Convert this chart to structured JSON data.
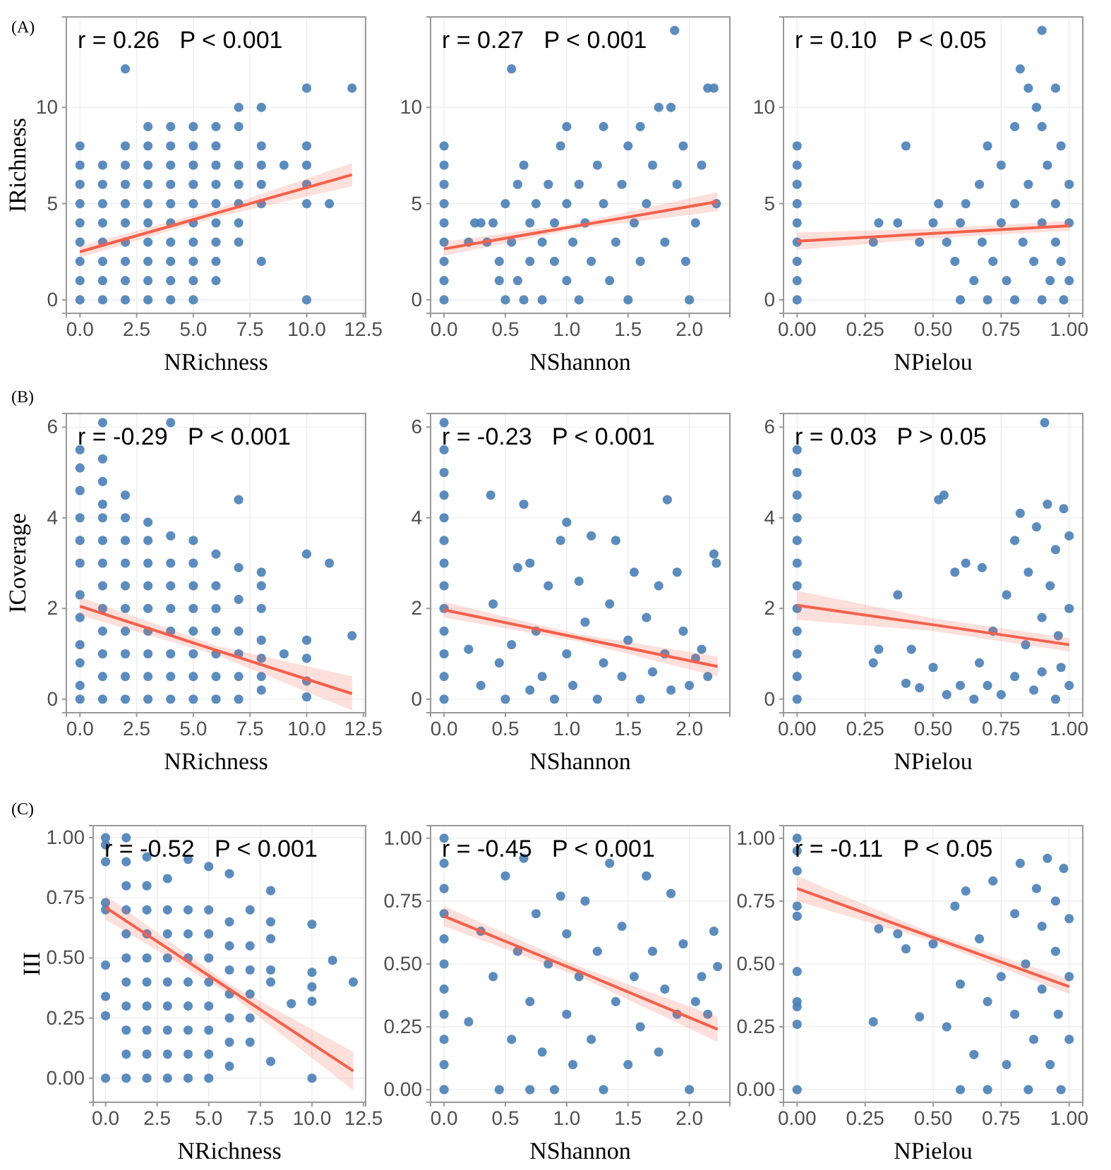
{
  "chart_data": [
    {
      "type": "scatter",
      "title": "(A)",
      "xlabel": "NRichness",
      "ylabel": "IRichness",
      "annotations": [
        "r = 0.26   P < 0.001"
      ],
      "xlim": [
        -0.6,
        12.6
      ],
      "xticks": [
        {
          "value": 0,
          "label": "0.0"
        },
        {
          "value": 2.5,
          "label": "2.5"
        },
        {
          "value": 5,
          "label": "5.0"
        },
        {
          "value": 7.5,
          "label": "7.5"
        },
        {
          "value": 10,
          "label": "10.0"
        },
        {
          "value": 12.5,
          "label": "12.5"
        }
      ],
      "ylim": [
        -0.7,
        14.7
      ],
      "yticks": [
        0,
        5,
        10
      ],
      "grid": true,
      "series": [
        {
          "type": "scatter",
          "color": "#4a80b6",
          "x": [
            0,
            0,
            0,
            0,
            0,
            0,
            0,
            0,
            0,
            1,
            1,
            1,
            1,
            1,
            1,
            1,
            1,
            2,
            2,
            2,
            2,
            2,
            2,
            2,
            2,
            2,
            2,
            3,
            3,
            3,
            3,
            3,
            3,
            3,
            3,
            3,
            3,
            4,
            4,
            4,
            4,
            4,
            4,
            4,
            4,
            4,
            4,
            5,
            5,
            5,
            5,
            5,
            5,
            5,
            5,
            5,
            5,
            6,
            6,
            6,
            6,
            6,
            6,
            6,
            6,
            6,
            7,
            7,
            7,
            7,
            7,
            7,
            7,
            8,
            8,
            8,
            8,
            8,
            8,
            9,
            10,
            10,
            10,
            10,
            10,
            10,
            11,
            12
          ],
          "values": [
            0,
            1,
            2,
            3,
            4,
            5,
            6,
            7,
            8,
            0,
            1,
            2,
            3,
            4,
            5,
            6,
            7,
            0,
            1,
            2,
            3,
            4,
            5,
            6,
            7,
            8,
            12,
            0,
            1,
            2,
            3,
            4,
            5,
            6,
            7,
            8,
            9,
            0,
            1,
            2,
            3,
            4,
            5,
            6,
            7,
            8,
            9,
            0,
            1,
            2,
            3,
            4,
            5,
            6,
            7,
            8,
            9,
            1,
            2,
            3,
            4,
            5,
            6,
            7,
            8,
            9,
            3,
            4,
            5,
            6,
            7,
            9,
            10,
            2,
            5,
            6,
            7,
            8,
            10,
            7,
            0,
            5,
            6,
            7,
            8,
            11,
            5,
            11
          ]
        },
        {
          "type": "line",
          "color": "#f4604a",
          "x": [
            0,
            6,
            12
          ],
          "values": [
            2.5,
            4.5,
            6.5
          ],
          "lower": [
            2.2,
            4.3,
            5.9
          ],
          "upper": [
            2.8,
            4.7,
            7.1
          ]
        }
      ]
    },
    {
      "type": "scatter",
      "xlabel": "NShannon",
      "annotations": [
        "r = 0.27   P < 0.001"
      ],
      "xlim": [
        -0.11,
        2.33
      ],
      "xticks": [
        {
          "value": 0,
          "label": "0.0"
        },
        {
          "value": 0.5,
          "label": "0.5"
        },
        {
          "value": 1,
          "label": "1.0"
        },
        {
          "value": 1.5,
          "label": "1.5"
        },
        {
          "value": 2,
          "label": "2.0"
        }
      ],
      "ylim": [
        -0.7,
        14.7
      ],
      "yticks": [
        0,
        5,
        10
      ],
      "grid": true,
      "series": [
        {
          "type": "scatter",
          "color": "#4a80b6",
          "x": [
            0,
            0,
            0,
            0,
            0,
            0,
            0,
            0,
            0,
            0.2,
            0.25,
            0.3,
            0.35,
            0.4,
            0.45,
            0.45,
            0.5,
            0.5,
            0.55,
            0.55,
            0.6,
            0.6,
            0.65,
            0.65,
            0.7,
            0.7,
            0.75,
            0.8,
            0.8,
            0.85,
            0.9,
            0.9,
            0.95,
            1.0,
            1.0,
            1.0,
            1.05,
            1.1,
            1.1,
            1.15,
            1.2,
            1.25,
            1.3,
            1.3,
            1.35,
            1.4,
            1.45,
            1.5,
            1.5,
            1.55,
            1.6,
            1.6,
            1.65,
            1.7,
            1.75,
            1.8,
            1.85,
            1.88,
            1.9,
            1.95,
            1.97,
            2.0,
            2.05,
            2.1,
            2.15,
            2.2,
            2.22
          ],
          "values": [
            0,
            1,
            2,
            3,
            4,
            5,
            6,
            7,
            8,
            3,
            4,
            4,
            3,
            4,
            2,
            1,
            0,
            5,
            12,
            3,
            6,
            1,
            7,
            0,
            4,
            2,
            5,
            3,
            0,
            6,
            2,
            4,
            8,
            9,
            5,
            1,
            3,
            6,
            0,
            4,
            2,
            7,
            9,
            5,
            1,
            3,
            6,
            8,
            0,
            4,
            9,
            2,
            5,
            7,
            10,
            3,
            10,
            14,
            6,
            8,
            2,
            0,
            4,
            7,
            11,
            11,
            5
          ]
        },
        {
          "type": "line",
          "color": "#f4604a",
          "x": [
            0,
            1.1,
            2.23
          ],
          "values": [
            2.65,
            3.86,
            5.1
          ],
          "lower": [
            2.3,
            3.7,
            4.6
          ],
          "upper": [
            3.0,
            4.0,
            5.6
          ]
        }
      ]
    },
    {
      "type": "scatter",
      "xlabel": "NPielou",
      "annotations": [
        "r = 0.10   P < 0.05"
      ],
      "xlim": [
        -0.05,
        1.05
      ],
      "xticks": [
        {
          "value": 0,
          "label": "0.00"
        },
        {
          "value": 0.25,
          "label": "0.25"
        },
        {
          "value": 0.5,
          "label": "0.50"
        },
        {
          "value": 0.75,
          "label": "0.75"
        },
        {
          "value": 1,
          "label": "1.00"
        }
      ],
      "ylim": [
        -0.7,
        14.7
      ],
      "yticks": [
        0,
        5,
        10
      ],
      "grid": true,
      "series": [
        {
          "type": "scatter",
          "color": "#4a80b6",
          "x": [
            0,
            0,
            0,
            0,
            0,
            0,
            0,
            0,
            0,
            0.28,
            0.3,
            0.37,
            0.4,
            0.45,
            0.5,
            0.52,
            0.55,
            0.58,
            0.6,
            0.6,
            0.62,
            0.65,
            0.67,
            0.68,
            0.7,
            0.7,
            0.72,
            0.75,
            0.75,
            0.77,
            0.8,
            0.8,
            0.8,
            0.82,
            0.83,
            0.85,
            0.85,
            0.87,
            0.88,
            0.9,
            0.9,
            0.9,
            0.9,
            0.92,
            0.93,
            0.95,
            0.95,
            0.95,
            0.97,
            0.97,
            0.98,
            1.0,
            1.0,
            1.0
          ],
          "values": [
            0,
            1,
            2,
            3,
            4,
            5,
            6,
            7,
            8,
            3,
            4,
            4,
            8,
            3,
            4,
            5,
            3,
            2,
            0,
            4,
            5,
            1,
            6,
            3,
            8,
            0,
            2,
            7,
            4,
            1,
            9,
            5,
            0,
            12,
            3,
            11,
            6,
            2,
            10,
            14,
            9,
            4,
            0,
            7,
            1,
            11,
            5,
            3,
            8,
            2,
            0,
            6,
            4,
            1
          ]
        },
        {
          "type": "line",
          "color": "#f4604a",
          "x": [
            0,
            0.5,
            1
          ],
          "values": [
            3.05,
            3.45,
            3.85
          ],
          "lower": [
            2.6,
            3.2,
            3.6
          ],
          "upper": [
            3.5,
            3.7,
            4.1
          ]
        }
      ]
    },
    {
      "type": "scatter",
      "title": "(B)",
      "xlabel": "NRichness",
      "ylabel": "ICoverage",
      "annotations": [
        "r = -0.29   P < 0.001"
      ],
      "xlim": [
        -0.6,
        12.6
      ],
      "xticks": [
        {
          "value": 0,
          "label": "0.0"
        },
        {
          "value": 2.5,
          "label": "2.5"
        },
        {
          "value": 5,
          "label": "5.0"
        },
        {
          "value": 7.5,
          "label": "7.5"
        },
        {
          "value": 10,
          "label": "10.0"
        },
        {
          "value": 12.5,
          "label": "12.5"
        }
      ],
      "ylim": [
        -0.3,
        6.3
      ],
      "yticks": [
        0,
        2,
        4,
        6
      ],
      "grid": true,
      "series": [
        {
          "type": "scatter",
          "color": "#4a80b6",
          "x": [
            0,
            0,
            0,
            0,
            0,
            0,
            0,
            0,
            0,
            0,
            0,
            0,
            1,
            1,
            1,
            1,
            1,
            1,
            1,
            1,
            1,
            1,
            1,
            1,
            1,
            2,
            2,
            2,
            2,
            2,
            2,
            2,
            2,
            2,
            2,
            3,
            3,
            3,
            3,
            3,
            3,
            3,
            3,
            3,
            4,
            4,
            4,
            4,
            4,
            4,
            4,
            4,
            4,
            5,
            5,
            5,
            5,
            5,
            5,
            5,
            5,
            6,
            6,
            6,
            6,
            6,
            6,
            6,
            7,
            7,
            7,
            7,
            7,
            7,
            7,
            8,
            8,
            8,
            8,
            8,
            8,
            8,
            9,
            10,
            10,
            10,
            10,
            10,
            11,
            12
          ],
          "values": [
            0,
            0.3,
            0.8,
            1.2,
            1.8,
            2.3,
            3,
            3.5,
            4,
            4.6,
            5.1,
            5.5,
            0,
            0.5,
            1,
            1.5,
            2,
            2.5,
            3,
            3.5,
            4,
            4.3,
            4.8,
            5.3,
            6.1,
            0,
            0.5,
            1,
            1.5,
            2,
            2.5,
            3,
            3.5,
            4,
            4.5,
            0,
            0.5,
            1,
            1.5,
            2,
            2.5,
            3,
            3.5,
            3.9,
            0,
            0.5,
            1,
            1.5,
            2,
            2.5,
            3,
            3.6,
            6.1,
            0,
            0.5,
            1,
            1.5,
            2,
            2.5,
            3,
            3.5,
            0,
            0.5,
            1,
            1.5,
            2,
            2.5,
            3.2,
            0,
            0.5,
            1,
            1.5,
            2.2,
            2.9,
            4.4,
            0.2,
            0.5,
            0.9,
            1.3,
            2,
            2.5,
            2.8,
            1,
            0.05,
            0.4,
            0.9,
            1.3,
            3.2,
            3,
            1.4
          ]
        },
        {
          "type": "line",
          "color": "#f4604a",
          "x": [
            0,
            6,
            12
          ],
          "values": [
            2.05,
            1.08,
            0.12
          ],
          "lower": [
            1.85,
            0.98,
            -0.25
          ],
          "upper": [
            2.25,
            1.18,
            0.5
          ]
        }
      ]
    },
    {
      "type": "scatter",
      "xlabel": "NShannon",
      "annotations": [
        "r = -0.23   P < 0.001"
      ],
      "xlim": [
        -0.11,
        2.33
      ],
      "xticks": [
        {
          "value": 0,
          "label": "0.0"
        },
        {
          "value": 0.5,
          "label": "0.5"
        },
        {
          "value": 1,
          "label": "1.0"
        },
        {
          "value": 1.5,
          "label": "1.5"
        },
        {
          "value": 2,
          "label": "2.0"
        }
      ],
      "ylim": [
        -0.3,
        6.3
      ],
      "yticks": [
        0,
        2,
        4,
        6
      ],
      "grid": true,
      "series": [
        {
          "type": "scatter",
          "color": "#4a80b6",
          "x": [
            0,
            0,
            0,
            0,
            0,
            0,
            0,
            0,
            0,
            0,
            0,
            0,
            0,
            0.2,
            0.3,
            0.38,
            0.4,
            0.45,
            0.5,
            0.55,
            0.6,
            0.65,
            0.7,
            0.7,
            0.75,
            0.8,
            0.85,
            0.9,
            0.95,
            1.0,
            1.0,
            1.05,
            1.1,
            1.15,
            1.2,
            1.25,
            1.3,
            1.35,
            1.4,
            1.45,
            1.5,
            1.55,
            1.6,
            1.65,
            1.7,
            1.75,
            1.8,
            1.82,
            1.85,
            1.9,
            1.95,
            2.0,
            2.05,
            2.1,
            2.15,
            2.2,
            2.22
          ],
          "values": [
            0,
            0.5,
            1,
            1.5,
            2,
            2.5,
            3,
            3.5,
            4,
            4.5,
            5,
            5.5,
            6.1,
            1.1,
            0.3,
            4.5,
            2.1,
            0.8,
            0,
            1.2,
            2.9,
            4.3,
            0.2,
            3,
            1.5,
            0.5,
            2.5,
            0,
            3.5,
            1,
            3.9,
            0.3,
            2.6,
            1.7,
            3.6,
            0,
            0.8,
            2.1,
            3.5,
            0.5,
            1.3,
            2.8,
            0,
            1.8,
            0.6,
            2.5,
            1,
            4.4,
            0.2,
            2.8,
            1.5,
            0.3,
            0.9,
            1.1,
            0.5,
            3.2,
            3
          ]
        },
        {
          "type": "line",
          "color": "#f4604a",
          "x": [
            0,
            1.1,
            2.23
          ],
          "values": [
            1.97,
            1.35,
            0.72
          ],
          "lower": [
            1.8,
            1.27,
            0.5
          ],
          "upper": [
            2.14,
            1.43,
            0.94
          ]
        }
      ]
    },
    {
      "type": "scatter",
      "xlabel": "NPielou",
      "annotations": [
        "r = 0.03   P > 0.05"
      ],
      "xlim": [
        -0.05,
        1.05
      ],
      "xticks": [
        {
          "value": 0,
          "label": "0.00"
        },
        {
          "value": 0.25,
          "label": "0.25"
        },
        {
          "value": 0.5,
          "label": "0.50"
        },
        {
          "value": 0.75,
          "label": "0.75"
        },
        {
          "value": 1,
          "label": "1.00"
        }
      ],
      "ylim": [
        -0.3,
        6.3
      ],
      "yticks": [
        0,
        2,
        4,
        6
      ],
      "grid": true,
      "series": [
        {
          "type": "scatter",
          "color": "#4a80b6",
          "x": [
            0,
            0,
            0,
            0,
            0,
            0,
            0,
            0,
            0,
            0,
            0,
            0,
            0.28,
            0.3,
            0.37,
            0.4,
            0.42,
            0.45,
            0.5,
            0.52,
            0.54,
            0.55,
            0.58,
            0.6,
            0.62,
            0.65,
            0.67,
            0.68,
            0.7,
            0.72,
            0.75,
            0.77,
            0.8,
            0.8,
            0.82,
            0.84,
            0.85,
            0.87,
            0.88,
            0.9,
            0.9,
            0.91,
            0.92,
            0.93,
            0.95,
            0.95,
            0.96,
            0.97,
            0.98,
            1.0,
            1.0,
            1.0
          ],
          "values": [
            0,
            0.5,
            1,
            1.5,
            2,
            2.5,
            3,
            3.5,
            4,
            4.5,
            5,
            5.5,
            0.8,
            1.1,
            2.3,
            0.35,
            1.1,
            0.25,
            0.7,
            4.4,
            4.5,
            0.1,
            2.8,
            0.3,
            3,
            0,
            0.8,
            2.9,
            0.3,
            1.5,
            0.1,
            2.3,
            0.5,
            3.5,
            4.1,
            1.2,
            2.8,
            0.2,
            3.8,
            1.8,
            0.6,
            6.1,
            4.3,
            2.5,
            0,
            3.3,
            1.4,
            0.7,
            4.2,
            2.0,
            0.3,
            3.6
          ]
        },
        {
          "type": "line",
          "color": "#f4604a",
          "x": [
            0,
            0.5,
            1
          ],
          "values": [
            2.07,
            1.64,
            1.2
          ],
          "lower": [
            1.75,
            1.5,
            1.05
          ],
          "upper": [
            2.39,
            1.78,
            1.35
          ]
        }
      ]
    },
    {
      "type": "scatter",
      "title": "(C)",
      "xlabel": "NRichness",
      "ylabel": "III",
      "annotations": [
        "r = -0.52   P < 0.001"
      ],
      "xlim": [
        -0.6,
        12.6
      ],
      "xticks": [
        {
          "value": 0,
          "label": "0.0"
        },
        {
          "value": 2.5,
          "label": "2.5"
        },
        {
          "value": 5,
          "label": "5.0"
        },
        {
          "value": 7.5,
          "label": "7.5"
        },
        {
          "value": 10,
          "label": "10.0"
        },
        {
          "value": 12.5,
          "label": "12.5"
        }
      ],
      "ylim": [
        -0.1,
        1.05
      ],
      "yticks": [
        {
          "value": 0,
          "label": "0.00"
        },
        {
          "value": 0.25,
          "label": "0.25"
        },
        {
          "value": 0.5,
          "label": "0.50"
        },
        {
          "value": 0.75,
          "label": "0.75"
        },
        {
          "value": 1,
          "label": "1.00"
        }
      ],
      "grid": true,
      "series": [
        {
          "type": "scatter",
          "color": "#4a80b6",
          "x": [
            0,
            0,
            0,
            0,
            0,
            0,
            0,
            0,
            0,
            1,
            1,
            1,
            1,
            1,
            1,
            1,
            1,
            1,
            1,
            1,
            2,
            2,
            2,
            2,
            2,
            2,
            2,
            2,
            2,
            2,
            3,
            3,
            3,
            3,
            3,
            3,
            3,
            3,
            3,
            4,
            4,
            4,
            4,
            4,
            4,
            4,
            4,
            4,
            5,
            5,
            5,
            5,
            5,
            5,
            5,
            5,
            5,
            6,
            6,
            6,
            6,
            6,
            6,
            6,
            6,
            7,
            7,
            7,
            7,
            7,
            7,
            8,
            8,
            8,
            8,
            8,
            8,
            9,
            10,
            10,
            10,
            10,
            10,
            11,
            12
          ],
          "values": [
            0,
            0.26,
            0.34,
            0.47,
            0.7,
            0.73,
            0.9,
            0.97,
            1,
            0,
            0.1,
            0.2,
            0.3,
            0.4,
            0.5,
            0.6,
            0.7,
            0.8,
            0.9,
            1,
            0,
            0.1,
            0.2,
            0.3,
            0.4,
            0.5,
            0.6,
            0.7,
            0.8,
            0.92,
            0,
            0.1,
            0.2,
            0.3,
            0.4,
            0.5,
            0.6,
            0.7,
            0.83,
            0,
            0.1,
            0.2,
            0.3,
            0.4,
            0.5,
            0.6,
            0.7,
            0.91,
            0,
            0.1,
            0.2,
            0.3,
            0.4,
            0.5,
            0.6,
            0.7,
            0.88,
            0.05,
            0.15,
            0.25,
            0.35,
            0.45,
            0.55,
            0.65,
            0.85,
            0.15,
            0.25,
            0.35,
            0.45,
            0.55,
            0.7,
            0.07,
            0.4,
            0.45,
            0.58,
            0.65,
            0.78,
            0.31,
            0,
            0.32,
            0.38,
            0.44,
            0.64,
            0.49,
            0.4
          ]
        },
        {
          "type": "line",
          "color": "#f4604a",
          "x": [
            0,
            6,
            12
          ],
          "values": [
            0.71,
            0.37,
            0.03
          ],
          "lower": [
            0.66,
            0.35,
            -0.05
          ],
          "upper": [
            0.76,
            0.39,
            0.11
          ]
        }
      ]
    },
    {
      "type": "scatter",
      "xlabel": "NShannon",
      "annotations": [
        "r = -0.45   P < 0.001"
      ],
      "xlim": [
        -0.11,
        2.33
      ],
      "xticks": [
        {
          "value": 0,
          "label": "0.0"
        },
        {
          "value": 0.5,
          "label": "0.5"
        },
        {
          "value": 1,
          "label": "1.0"
        },
        {
          "value": 1.5,
          "label": "1.5"
        },
        {
          "value": 2,
          "label": "2.0"
        }
      ],
      "ylim": [
        -0.05,
        1.05
      ],
      "yticks": [
        {
          "value": 0,
          "label": "0.00"
        },
        {
          "value": 0.25,
          "label": "0.25"
        },
        {
          "value": 0.5,
          "label": "0.50"
        },
        {
          "value": 0.75,
          "label": "0.75"
        },
        {
          "value": 1,
          "label": "1.00"
        }
      ],
      "grid": true,
      "series": [
        {
          "type": "scatter",
          "color": "#4a80b6",
          "x": [
            0,
            0,
            0,
            0,
            0,
            0,
            0,
            0,
            0,
            0,
            0,
            0.2,
            0.3,
            0.4,
            0.45,
            0.5,
            0.55,
            0.6,
            0.65,
            0.7,
            0.7,
            0.75,
            0.8,
            0.85,
            0.9,
            0.95,
            1.0,
            1.0,
            1.05,
            1.1,
            1.15,
            1.2,
            1.25,
            1.3,
            1.35,
            1.4,
            1.45,
            1.5,
            1.55,
            1.6,
            1.65,
            1.7,
            1.75,
            1.8,
            1.85,
            1.9,
            1.95,
            2.0,
            2.05,
            2.1,
            2.15,
            2.2,
            2.23
          ],
          "values": [
            0,
            0.1,
            0.2,
            0.3,
            0.4,
            0.5,
            0.6,
            0.7,
            0.8,
            0.9,
            1,
            0.27,
            0.63,
            0.45,
            0,
            0.85,
            0.2,
            0.55,
            0.92,
            0,
            0.35,
            0.7,
            0.15,
            0.5,
            0,
            0.77,
            0.3,
            0.62,
            0.1,
            0.45,
            0.75,
            0.2,
            0.55,
            0,
            0.9,
            0.35,
            0.65,
            0.1,
            0.45,
            0.25,
            0.85,
            0.55,
            0.15,
            0.4,
            0.78,
            0.3,
            0.58,
            0,
            0.35,
            0.45,
            0.3,
            0.63,
            0.49
          ]
        },
        {
          "type": "line",
          "color": "#f4604a",
          "x": [
            0,
            1.1,
            2.23
          ],
          "values": [
            0.69,
            0.47,
            0.24
          ],
          "lower": [
            0.65,
            0.45,
            0.19
          ],
          "upper": [
            0.73,
            0.49,
            0.29
          ]
        }
      ]
    },
    {
      "type": "scatter",
      "xlabel": "NPielou",
      "annotations": [
        "r = -0.11   P < 0.05"
      ],
      "xlim": [
        -0.05,
        1.05
      ],
      "xticks": [
        {
          "value": 0,
          "label": "0.00"
        },
        {
          "value": 0.25,
          "label": "0.25"
        },
        {
          "value": 0.5,
          "label": "0.50"
        },
        {
          "value": 0.75,
          "label": "0.75"
        },
        {
          "value": 1,
          "label": "1.00"
        }
      ],
      "ylim": [
        -0.05,
        1.05
      ],
      "yticks": [
        {
          "value": 0,
          "label": "0.00"
        },
        {
          "value": 0.25,
          "label": "0.25"
        },
        {
          "value": 0.5,
          "label": "0.50"
        },
        {
          "value": 0.75,
          "label": "0.75"
        },
        {
          "value": 1,
          "label": "1.00"
        }
      ],
      "grid": true,
      "series": [
        {
          "type": "scatter",
          "color": "#4a80b6",
          "x": [
            0,
            0,
            0,
            0,
            0,
            0,
            0,
            0,
            0,
            0,
            0.28,
            0.3,
            0.37,
            0.4,
            0.45,
            0.5,
            0.55,
            0.58,
            0.6,
            0.6,
            0.62,
            0.65,
            0.67,
            0.7,
            0.7,
            0.72,
            0.75,
            0.77,
            0.8,
            0.8,
            0.82,
            0.84,
            0.85,
            0.87,
            0.88,
            0.9,
            0.9,
            0.92,
            0.93,
            0.95,
            0.95,
            0.96,
            0.97,
            0.98,
            1.0,
            1.0,
            1.0
          ],
          "values": [
            0,
            0.26,
            0.33,
            0.35,
            0.47,
            0.69,
            0.73,
            0.87,
            0.95,
            1,
            0.27,
            0.64,
            0.62,
            0.56,
            0.29,
            0.58,
            0.25,
            0.73,
            0,
            0.42,
            0.79,
            0.14,
            0.6,
            0.35,
            0,
            0.83,
            0.45,
            0.1,
            0.7,
            0.3,
            0.9,
            0.5,
            0,
            0.2,
            0.8,
            0.4,
            0.65,
            0.92,
            0.1,
            0.55,
            0.75,
            0.3,
            0,
            0.88,
            0.45,
            0.68,
            0.2
          ]
        },
        {
          "type": "line",
          "color": "#f4604a",
          "x": [
            0,
            0.5,
            1
          ],
          "values": [
            0.8,
            0.605,
            0.41
          ],
          "lower": [
            0.75,
            0.59,
            0.38
          ],
          "upper": [
            0.85,
            0.62,
            0.44
          ]
        }
      ]
    }
  ]
}
